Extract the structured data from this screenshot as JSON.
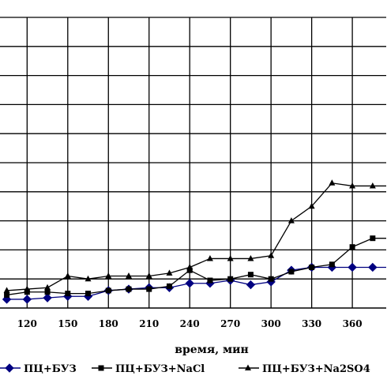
{
  "chart_data": {
    "type": "line",
    "title": "",
    "xlabel": "время, мин",
    "ylabel": "",
    "x_ticks": [
      120,
      150,
      180,
      210,
      240,
      270,
      300,
      330,
      360
    ],
    "xlim": [
      100,
      385
    ],
    "ylim": [
      0,
      100
    ],
    "grid": true,
    "legend": "bottom",
    "series": [
      {
        "name": "ПЦ+БУЗ",
        "marker": "diamond",
        "color": "#000080",
        "x": [
          105,
          120,
          135,
          150,
          165,
          180,
          195,
          210,
          225,
          240,
          255,
          270,
          285,
          300,
          315,
          330,
          345,
          360,
          375,
          385
        ],
        "y": [
          3,
          3,
          3.5,
          4,
          4,
          6,
          6.5,
          7,
          7,
          8.5,
          8.5,
          9.5,
          8,
          9,
          13,
          14,
          14,
          14,
          14,
          14
        ]
      },
      {
        "name": "ПЦ+БУЗ+NaCl",
        "marker": "square",
        "color": "#000000",
        "x": [
          105,
          120,
          135,
          150,
          165,
          180,
          195,
          210,
          225,
          240,
          255,
          270,
          285,
          300,
          315,
          330,
          345,
          360,
          375,
          385
        ],
        "y": [
          4.5,
          5.5,
          5.5,
          5,
          5,
          6,
          6.5,
          6.5,
          7.5,
          13,
          9.5,
          10,
          11.5,
          10,
          12.5,
          14,
          15,
          21,
          24,
          24
        ]
      },
      {
        "name": "ПЦ+БУЗ+Na2SO4",
        "marker": "triangle",
        "color": "#000000",
        "x": [
          105,
          120,
          135,
          150,
          165,
          180,
          195,
          210,
          225,
          240,
          255,
          270,
          285,
          300,
          315,
          330,
          345,
          360,
          375,
          385
        ],
        "y": [
          6,
          6.5,
          7,
          11,
          10,
          11,
          11,
          11,
          12,
          14,
          17,
          17,
          17,
          18,
          30,
          35,
          43,
          42,
          42,
          42
        ]
      }
    ]
  }
}
